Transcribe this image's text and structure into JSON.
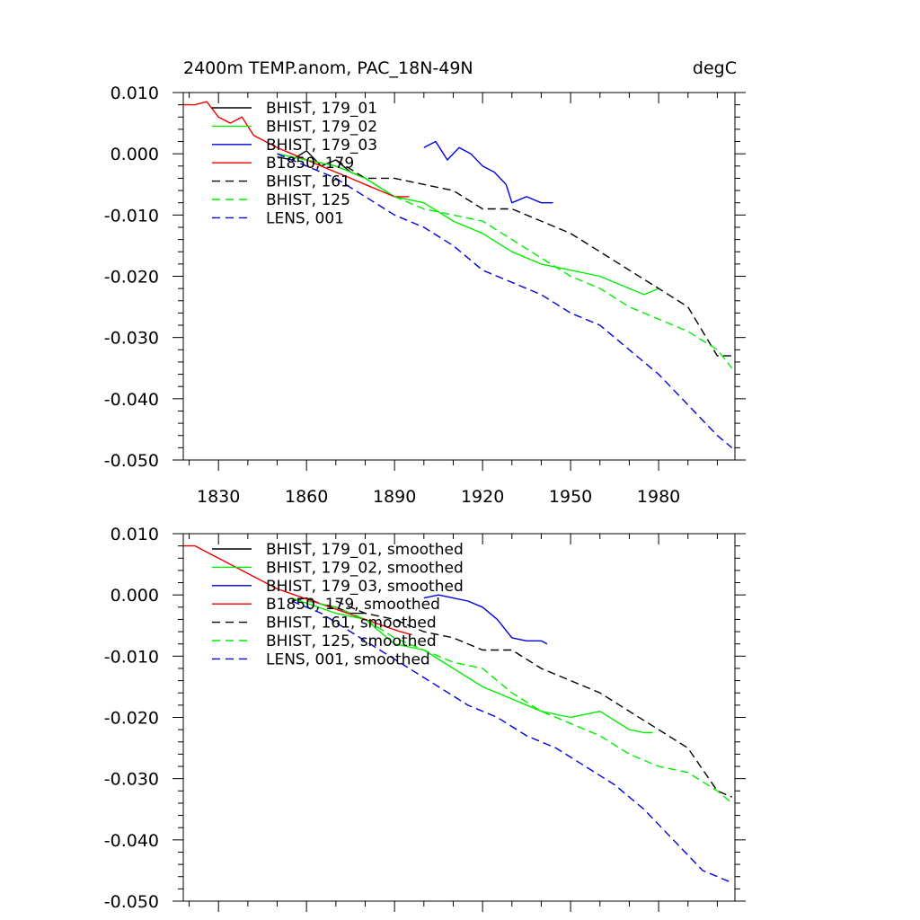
{
  "colors": {
    "black": "#000000",
    "green": "#00ee00",
    "blue": "#0000dd",
    "red": "#ee0000"
  },
  "chart_data": [
    {
      "type": "line",
      "title": "2400m TEMP.anom, PAC_18N-49N",
      "units": "degC",
      "xlim": [
        1818,
        2006
      ],
      "ylim": [
        -0.05,
        0.01
      ],
      "xticks": [
        "1830",
        "1860",
        "1890",
        "1920",
        "1950",
        "1980"
      ],
      "yticks": [
        "0.010",
        "0.000",
        "-0.010",
        "-0.020",
        "-0.030",
        "-0.040",
        "-0.050"
      ],
      "show_xtick_labels": true,
      "legend_position": "top-left",
      "series": [
        {
          "name": "BHIST, 179_01",
          "color": "black",
          "dash": "solid",
          "x": [
            1850,
            1855,
            1860,
            1865,
            1870,
            1875,
            1880
          ],
          "y": [
            -0.0005,
            -0.001,
            0.0005,
            -0.002,
            -0.001,
            -0.003,
            -0.004
          ]
        },
        {
          "name": "BHIST, 179_02",
          "color": "green",
          "dash": "solid",
          "x": [
            1850,
            1860,
            1870,
            1880,
            1890,
            1900,
            1910,
            1920,
            1930,
            1940,
            1950,
            1960,
            1970,
            1975,
            1980
          ],
          "y": [
            0.0,
            -0.001,
            -0.002,
            -0.004,
            -0.007,
            -0.008,
            -0.011,
            -0.013,
            -0.016,
            -0.018,
            -0.019,
            -0.02,
            -0.022,
            -0.023,
            -0.022
          ]
        },
        {
          "name": "BHIST, 179_03",
          "color": "blue",
          "dash": "solid",
          "x": [
            1900,
            1904,
            1908,
            1912,
            1916,
            1920,
            1924,
            1928,
            1930,
            1935,
            1940,
            1944
          ],
          "y": [
            0.001,
            0.002,
            -0.001,
            0.001,
            0.0,
            -0.002,
            -0.003,
            -0.005,
            -0.008,
            -0.007,
            -0.008,
            -0.008
          ]
        },
        {
          "name": "B1850, 179",
          "color": "red",
          "dash": "solid",
          "x": [
            1818,
            1822,
            1826,
            1830,
            1834,
            1838,
            1842,
            1846,
            1850,
            1855,
            1860,
            1865,
            1870,
            1875,
            1880,
            1885,
            1890,
            1895
          ],
          "y": [
            0.008,
            0.008,
            0.0085,
            0.006,
            0.005,
            0.006,
            0.003,
            0.002,
            0.001,
            0.0,
            -0.001,
            -0.002,
            -0.003,
            -0.004,
            -0.005,
            -0.006,
            -0.007,
            -0.007
          ]
        },
        {
          "name": "BHIST, 161",
          "color": "black",
          "dash": "dashed",
          "x": [
            1870,
            1880,
            1890,
            1900,
            1910,
            1920,
            1930,
            1940,
            1950,
            1960,
            1970,
            1980,
            1990,
            2000,
            2005
          ],
          "y": [
            -0.001,
            -0.004,
            -0.004,
            -0.005,
            -0.006,
            -0.009,
            -0.009,
            -0.011,
            -0.013,
            -0.016,
            -0.019,
            -0.022,
            -0.025,
            -0.033,
            -0.033
          ]
        },
        {
          "name": "BHIST, 125",
          "color": "green",
          "dash": "dashed",
          "x": [
            1850,
            1860,
            1870,
            1880,
            1890,
            1900,
            1910,
            1920,
            1930,
            1940,
            1950,
            1960,
            1970,
            1980,
            1990,
            2000,
            2005
          ],
          "y": [
            0.0,
            -0.001,
            -0.002,
            -0.004,
            -0.007,
            -0.009,
            -0.01,
            -0.011,
            -0.014,
            -0.017,
            -0.02,
            -0.022,
            -0.025,
            -0.027,
            -0.029,
            -0.032,
            -0.035
          ]
        },
        {
          "name": "LENS, 001",
          "color": "blue",
          "dash": "dashed",
          "x": [
            1850,
            1860,
            1870,
            1880,
            1890,
            1900,
            1910,
            1920,
            1930,
            1940,
            1950,
            1960,
            1970,
            1980,
            1990,
            2000,
            2005
          ],
          "y": [
            0.0,
            -0.002,
            -0.004,
            -0.007,
            -0.01,
            -0.012,
            -0.015,
            -0.019,
            -0.021,
            -0.023,
            -0.026,
            -0.028,
            -0.032,
            -0.036,
            -0.041,
            -0.046,
            -0.048
          ]
        }
      ]
    },
    {
      "type": "line",
      "title": "",
      "units": "",
      "xlim": [
        1818,
        2006
      ],
      "ylim": [
        -0.05,
        0.01
      ],
      "xticks": [
        "1830",
        "1860",
        "1890",
        "1920",
        "1950",
        "1980"
      ],
      "yticks": [
        "0.010",
        "0.000",
        "-0.010",
        "-0.020",
        "-0.030",
        "-0.040",
        "-0.050"
      ],
      "show_xtick_labels": false,
      "legend_position": "top-left",
      "series": [
        {
          "name": "BHIST, 179_01, smoothed",
          "color": "black",
          "dash": "solid",
          "x": [
            1855,
            1860,
            1865,
            1870,
            1875,
            1880
          ],
          "y": [
            -0.001,
            -0.0005,
            -0.0015,
            -0.002,
            -0.003,
            -0.003
          ]
        },
        {
          "name": "BHIST, 179_02, smoothed",
          "color": "green",
          "dash": "solid",
          "x": [
            1855,
            1870,
            1880,
            1890,
            1900,
            1910,
            1920,
            1930,
            1940,
            1950,
            1960,
            1970,
            1975,
            1978
          ],
          "y": [
            -0.0005,
            -0.003,
            -0.004,
            -0.008,
            -0.009,
            -0.012,
            -0.015,
            -0.017,
            -0.019,
            -0.02,
            -0.019,
            -0.022,
            -0.0225,
            -0.0225
          ]
        },
        {
          "name": "BHIST, 179_03, smoothed",
          "color": "blue",
          "dash": "solid",
          "x": [
            1900,
            1905,
            1910,
            1915,
            1920,
            1925,
            1930,
            1935,
            1940,
            1942
          ],
          "y": [
            -0.0005,
            0.0,
            -0.0005,
            -0.001,
            -0.002,
            -0.004,
            -0.007,
            -0.0075,
            -0.0075,
            -0.008
          ]
        },
        {
          "name": "B1850, 179, smoothed",
          "color": "red",
          "dash": "solid",
          "x": [
            1818,
            1822,
            1826,
            1830,
            1834,
            1838,
            1842,
            1846,
            1850,
            1856,
            1862,
            1868,
            1874,
            1880,
            1886,
            1892,
            1896
          ],
          "y": [
            0.008,
            0.008,
            0.007,
            0.006,
            0.005,
            0.004,
            0.003,
            0.002,
            0.001,
            0.0,
            -0.001,
            -0.002,
            -0.003,
            -0.004,
            -0.005,
            -0.006,
            -0.0065
          ]
        },
        {
          "name": "BHIST, 161, smoothed",
          "color": "black",
          "dash": "dashed",
          "x": [
            1870,
            1880,
            1890,
            1900,
            1910,
            1920,
            1930,
            1940,
            1950,
            1960,
            1970,
            1980,
            1990,
            2000,
            2005
          ],
          "y": [
            -0.001,
            -0.003,
            -0.004,
            -0.006,
            -0.007,
            -0.009,
            -0.009,
            -0.012,
            -0.014,
            -0.016,
            -0.019,
            -0.022,
            -0.025,
            -0.032,
            -0.033
          ]
        },
        {
          "name": "BHIST, 125, smoothed",
          "color": "green",
          "dash": "dashed",
          "x": [
            1860,
            1870,
            1880,
            1890,
            1900,
            1910,
            1920,
            1930,
            1940,
            1950,
            1960,
            1970,
            1980,
            1990,
            2000,
            2005
          ],
          "y": [
            -0.001,
            -0.002,
            -0.004,
            -0.007,
            -0.009,
            -0.011,
            -0.012,
            -0.016,
            -0.019,
            -0.021,
            -0.023,
            -0.026,
            -0.028,
            -0.029,
            -0.032,
            -0.034
          ]
        },
        {
          "name": "LENS, 001, smoothed",
          "color": "blue",
          "dash": "dashed",
          "x": [
            1855,
            1865,
            1875,
            1885,
            1895,
            1905,
            1915,
            1925,
            1935,
            1945,
            1955,
            1965,
            1975,
            1985,
            1995,
            2005
          ],
          "y": [
            -0.001,
            -0.003,
            -0.006,
            -0.009,
            -0.012,
            -0.015,
            -0.018,
            -0.02,
            -0.023,
            -0.025,
            -0.028,
            -0.031,
            -0.035,
            -0.04,
            -0.045,
            -0.047
          ]
        }
      ]
    }
  ]
}
